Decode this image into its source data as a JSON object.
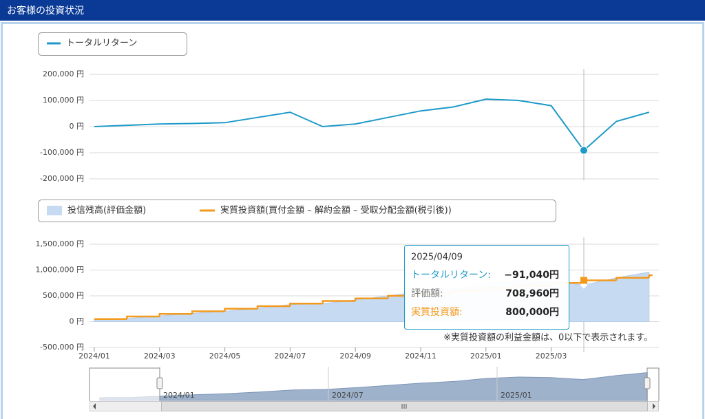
{
  "header": {
    "title": "お客様の投資状況"
  },
  "chart_data": [
    {
      "type": "line",
      "series": [
        {
          "name": "トータルリターン",
          "color": "#1e9ac8",
          "values": [
            0,
            5000,
            10000,
            12000,
            15000,
            35000,
            55000,
            0,
            10000,
            35000,
            60000,
            75000,
            105000,
            100000,
            80000,
            -91040,
            20000,
            55000
          ]
        }
      ],
      "ylim": [
        -200000,
        200000
      ],
      "yticks": [
        {
          "value": 200000,
          "label": "200,000 円"
        },
        {
          "value": 100000,
          "label": "100,000 円"
        },
        {
          "value": 0,
          "label": "0 円"
        },
        {
          "value": -100000,
          "label": "-100,000 円"
        },
        {
          "value": -200000,
          "label": "-200,000 円"
        }
      ],
      "grid": true
    },
    {
      "type": "combo",
      "categories": [
        "2024/01",
        null,
        "2024/03",
        null,
        "2024/05",
        null,
        "2024/07",
        null,
        "2024/09",
        null,
        "2024/11",
        null,
        "2025/01",
        null,
        "2025/03",
        null,
        null,
        null
      ],
      "series": [
        {
          "name": "投信残高(評価金額)",
          "color": "#c6daf2",
          "style": "area",
          "values": [
            50000,
            60000,
            110000,
            160000,
            200000,
            260000,
            330000,
            350000,
            420000,
            500000,
            580000,
            640000,
            750000,
            800000,
            780000,
            708960,
            850000,
            960000
          ]
        },
        {
          "name": "実質投資額(買付金額 – 解約金額 – 受取分配金額(税引後))",
          "color": "#f39a1e",
          "style": "step",
          "values": [
            50000,
            100000,
            150000,
            200000,
            250000,
            300000,
            350000,
            400000,
            450000,
            500000,
            550000,
            600000,
            650000,
            700000,
            750000,
            800000,
            850000,
            900000
          ]
        }
      ],
      "ylim": [
        -500000,
        1500000
      ],
      "yticks": [
        {
          "value": 1500000,
          "label": "1,500,000 円"
        },
        {
          "value": 1000000,
          "label": "1,000,000 円"
        },
        {
          "value": 500000,
          "label": "500,000 円"
        },
        {
          "value": 0,
          "label": "0 円"
        },
        {
          "value": -500000,
          "label": "-500,000 円"
        }
      ],
      "grid": true,
      "tooltip": {
        "title": "2025/04/09",
        "rows": [
          {
            "label": "トータルリターン:",
            "value": -91040,
            "value_label": "−91,040円",
            "color": "#1e9ac8"
          },
          {
            "label": "評価額:",
            "value": 708960,
            "value_label": "708,960円",
            "color": "#777777"
          },
          {
            "label": "実質投資額:",
            "value": 800000,
            "value_label": "800,000円",
            "color": "#f39a1e"
          }
        ]
      },
      "note": "※実質投資額の利益金額は、0以下で表示されます。"
    }
  ],
  "navigator": {
    "labels": [
      "2024/01",
      "2024/07",
      "2025/01"
    ]
  }
}
